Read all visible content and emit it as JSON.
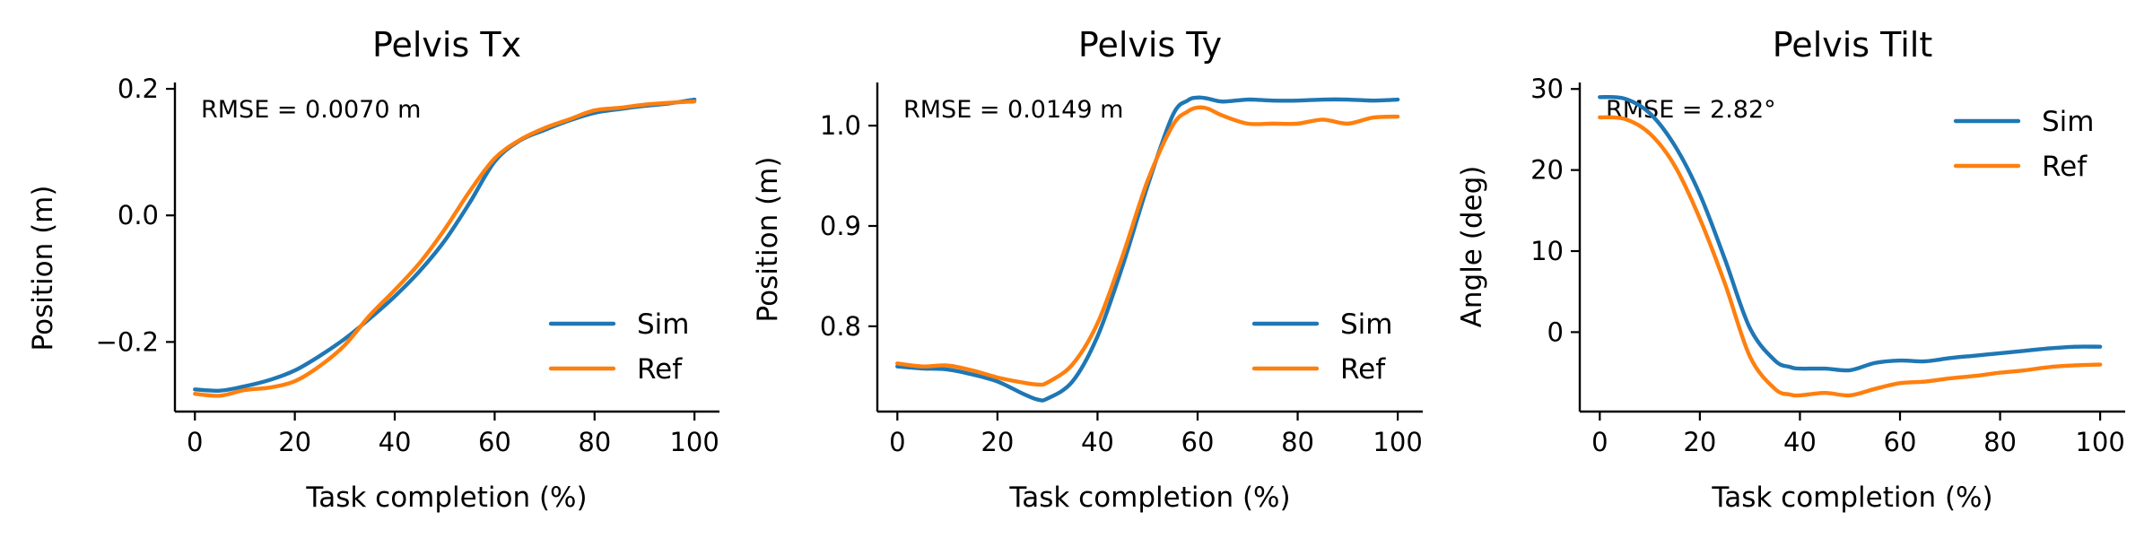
{
  "colors": {
    "sim": "#1f77b4",
    "ref": "#ff7f0e"
  },
  "chart_data": [
    {
      "type": "line",
      "title": "Pelvis Tx",
      "xlabel": "Task completion (%)",
      "ylabel": "Position (m)",
      "annotation": "RMSE = 0.0070 m",
      "xlim": [
        -4,
        105
      ],
      "ylim": [
        -0.31,
        0.21
      ],
      "xticks": [
        0,
        20,
        40,
        60,
        80,
        100
      ],
      "xtick_labels": [
        "0",
        "20",
        "40",
        "60",
        "80",
        "100"
      ],
      "yticks": [
        -0.2,
        0.0,
        0.2
      ],
      "ytick_labels": [
        "−0.2",
        "0.0",
        "0.2"
      ],
      "legend": "lower-right",
      "series": [
        {
          "name": "Sim",
          "color": "#1f77b4",
          "x": [
            0,
            5,
            10,
            15,
            20,
            25,
            30,
            35,
            40,
            45,
            50,
            55,
            60,
            65,
            70,
            75,
            80,
            85,
            90,
            95,
            100
          ],
          "y": [
            -0.275,
            -0.277,
            -0.27,
            -0.26,
            -0.245,
            -0.222,
            -0.195,
            -0.163,
            -0.128,
            -0.088,
            -0.04,
            0.02,
            0.085,
            0.118,
            0.135,
            0.15,
            0.162,
            0.168,
            0.173,
            0.177,
            0.183
          ]
        },
        {
          "name": "Ref",
          "color": "#ff7f0e",
          "x": [
            0,
            5,
            10,
            15,
            20,
            25,
            30,
            35,
            40,
            45,
            50,
            55,
            60,
            65,
            70,
            75,
            80,
            85,
            90,
            95,
            100
          ],
          "y": [
            -0.282,
            -0.285,
            -0.276,
            -0.272,
            -0.262,
            -0.238,
            -0.205,
            -0.158,
            -0.118,
            -0.075,
            -0.022,
            0.038,
            0.09,
            0.119,
            0.138,
            0.152,
            0.166,
            0.17,
            0.175,
            0.178,
            0.18
          ]
        }
      ]
    },
    {
      "type": "line",
      "title": "Pelvis Ty",
      "xlabel": "Task completion (%)",
      "ylabel": "Position (m)",
      "annotation": "RMSE = 0.0149 m",
      "xlim": [
        -4,
        105
      ],
      "ylim": [
        0.715,
        1.043
      ],
      "xticks": [
        0,
        20,
        40,
        60,
        80,
        100
      ],
      "xtick_labels": [
        "0",
        "20",
        "40",
        "60",
        "80",
        "100"
      ],
      "yticks": [
        0.8,
        0.9,
        1.0
      ],
      "ytick_labels": [
        "0.8",
        "0.9",
        "1.0"
      ],
      "legend": "lower-right",
      "series": [
        {
          "name": "Sim",
          "color": "#1f77b4",
          "x": [
            0,
            5,
            10,
            15,
            20,
            25,
            28,
            30,
            35,
            40,
            45,
            50,
            55,
            58,
            60,
            62,
            65,
            70,
            75,
            80,
            85,
            90,
            95,
            100
          ],
          "y": [
            0.76,
            0.758,
            0.757,
            0.752,
            0.745,
            0.733,
            0.727,
            0.728,
            0.745,
            0.79,
            0.86,
            0.94,
            1.01,
            1.025,
            1.028,
            1.027,
            1.024,
            1.026,
            1.025,
            1.025,
            1.026,
            1.026,
            1.025,
            1.026
          ]
        },
        {
          "name": "Ref",
          "color": "#ff7f0e",
          "x": [
            0,
            5,
            10,
            15,
            20,
            25,
            28,
            30,
            35,
            40,
            45,
            50,
            55,
            58,
            60,
            62,
            65,
            70,
            75,
            80,
            85,
            90,
            95,
            100
          ],
          "y": [
            0.763,
            0.76,
            0.761,
            0.756,
            0.749,
            0.744,
            0.742,
            0.744,
            0.762,
            0.803,
            0.87,
            0.945,
            1.0,
            1.014,
            1.018,
            1.017,
            1.01,
            1.002,
            1.002,
            1.002,
            1.006,
            1.002,
            1.008,
            1.009
          ]
        }
      ]
    },
    {
      "type": "line",
      "title": "Pelvis Tilt",
      "xlabel": "Task completion (%)",
      "ylabel": "Angle (deg)",
      "annotation": "RMSE = 2.82°",
      "xlim": [
        -4,
        105
      ],
      "ylim": [
        -9.8,
        30.8
      ],
      "xticks": [
        0,
        20,
        40,
        60,
        80,
        100
      ],
      "xtick_labels": [
        "0",
        "20",
        "40",
        "60",
        "80",
        "100"
      ],
      "yticks": [
        0,
        10,
        20,
        30
      ],
      "ytick_labels": [
        "0",
        "10",
        "20",
        "30"
      ],
      "legend": "upper-right",
      "series": [
        {
          "name": "Sim",
          "color": "#1f77b4",
          "x": [
            0,
            5,
            10,
            15,
            20,
            25,
            30,
            35,
            38,
            40,
            45,
            50,
            55,
            60,
            65,
            70,
            75,
            80,
            85,
            90,
            95,
            100
          ],
          "y": [
            29.0,
            28.8,
            27.0,
            23.0,
            17.0,
            9.0,
            0.5,
            -3.5,
            -4.3,
            -4.5,
            -4.5,
            -4.7,
            -3.8,
            -3.5,
            -3.6,
            -3.2,
            -2.9,
            -2.6,
            -2.3,
            -2.0,
            -1.8,
            -1.8
          ]
        },
        {
          "name": "Ref",
          "color": "#ff7f0e",
          "x": [
            0,
            5,
            10,
            15,
            20,
            25,
            30,
            35,
            38,
            40,
            45,
            50,
            55,
            60,
            65,
            70,
            75,
            80,
            85,
            90,
            95,
            100
          ],
          "y": [
            26.5,
            26.3,
            24.5,
            20.5,
            14.0,
            6.0,
            -3.0,
            -7.0,
            -7.7,
            -7.8,
            -7.5,
            -7.8,
            -7.0,
            -6.3,
            -6.1,
            -5.7,
            -5.4,
            -5.0,
            -4.7,
            -4.3,
            -4.1,
            -4.0
          ]
        }
      ]
    }
  ]
}
